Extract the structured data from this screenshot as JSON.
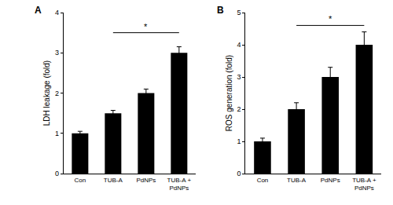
{
  "chart_data": [
    {
      "type": "bar",
      "panel": "A",
      "y_label": "LDH leakage (fold)",
      "categories": [
        "Con",
        "TUB-A",
        "PdNPs",
        "TUB-A + PdNPs"
      ],
      "values": [
        1.0,
        1.5,
        2.0,
        3.0
      ],
      "errors": [
        0.05,
        0.07,
        0.1,
        0.15
      ],
      "color": "#000000",
      "ylim": [
        0,
        4
      ],
      "yticks": [
        0,
        1,
        2,
        3,
        4
      ],
      "grid": false,
      "significance": {
        "from": "TUB-A",
        "to": "TUB-A + PdNPs",
        "y": 3.5,
        "label": "*"
      }
    },
    {
      "type": "bar",
      "panel": "B",
      "y_label": "ROS generation (fold)",
      "categories": [
        "Con",
        "TUB-A",
        "PdNPs",
        "TUB-A + PdNPs"
      ],
      "values": [
        1.0,
        2.0,
        3.0,
        4.0
      ],
      "errors": [
        0.1,
        0.2,
        0.3,
        0.4
      ],
      "color": "#000000",
      "ylim": [
        0,
        5
      ],
      "yticks": [
        0,
        1,
        2,
        3,
        4,
        5
      ],
      "grid": false,
      "significance": {
        "from": "TUB-A",
        "to": "TUB-A + PdNPs",
        "y": 4.6,
        "label": "*"
      }
    }
  ]
}
